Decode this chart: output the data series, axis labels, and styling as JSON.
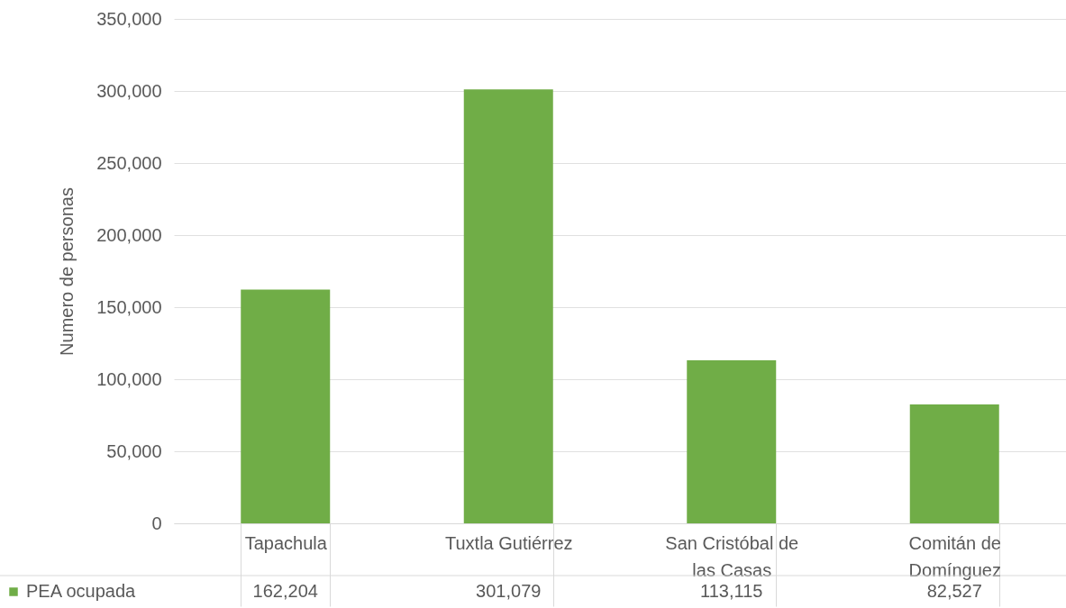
{
  "chart_data": {
    "type": "bar",
    "ylabel": "Numero de personas",
    "categories": [
      "Tapachula",
      "Tuxtla Gutiérrez",
      "San Cristóbal de las Casas",
      "Comitán de Domínguez"
    ],
    "series": [
      {
        "name": "PEA ocupada",
        "color": "#70ad47",
        "values": [
          162204,
          301079,
          113115,
          82527
        ],
        "value_labels": [
          "162,204",
          "301,079",
          "113,115",
          "82,527"
        ]
      }
    ],
    "ylim": [
      0,
      350000
    ],
    "yticks": [
      0,
      {
        "value": 50000,
        "label": "50,000"
      },
      {
        "value": 100000,
        "label": "100,000"
      },
      {
        "value": 150000,
        "label": "150,000"
      },
      {
        "value": 200000,
        "label": "200,000"
      },
      {
        "value": 250000,
        "label": "250,000"
      },
      {
        "value": 300000,
        "label": "300,000"
      },
      {
        "value": 350000,
        "label": "350,000"
      }
    ],
    "grid": "y",
    "legend": "bottom left"
  }
}
